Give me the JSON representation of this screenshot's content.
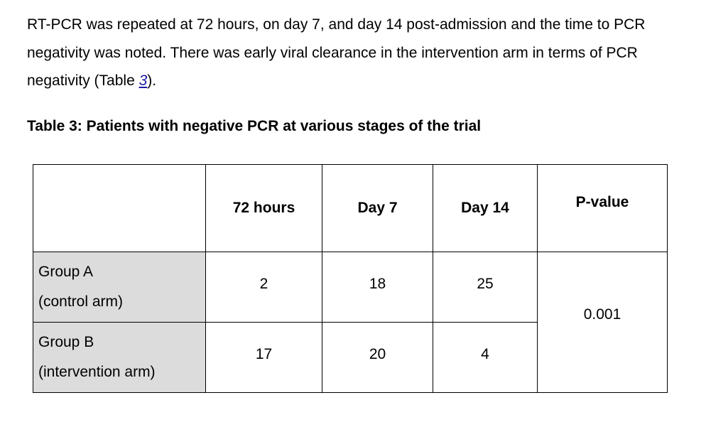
{
  "paragraph": {
    "text_before": "RT-PCR was repeated at 72 hours, on day 7, and day 14 post-admission and the time to PCR negativity was noted. There was early viral clearance in the intervention arm in terms of PCR negativity (Table ",
    "link_text": "3",
    "text_after": ")."
  },
  "table_caption": "Table 3: Patients with negative PCR at various stages of the trial",
  "table": {
    "headers": [
      "",
      "72 hours",
      "Day 7",
      "Day 14",
      "P-value"
    ],
    "rows": [
      {
        "label_line1": "Group A",
        "label_line2": "(control arm)",
        "values": [
          "2",
          "18",
          "25"
        ]
      },
      {
        "label_line1": "Group B",
        "label_line2": "(intervention arm)",
        "values": [
          "17",
          "20",
          "4"
        ]
      }
    ],
    "p_value": "0.001"
  }
}
